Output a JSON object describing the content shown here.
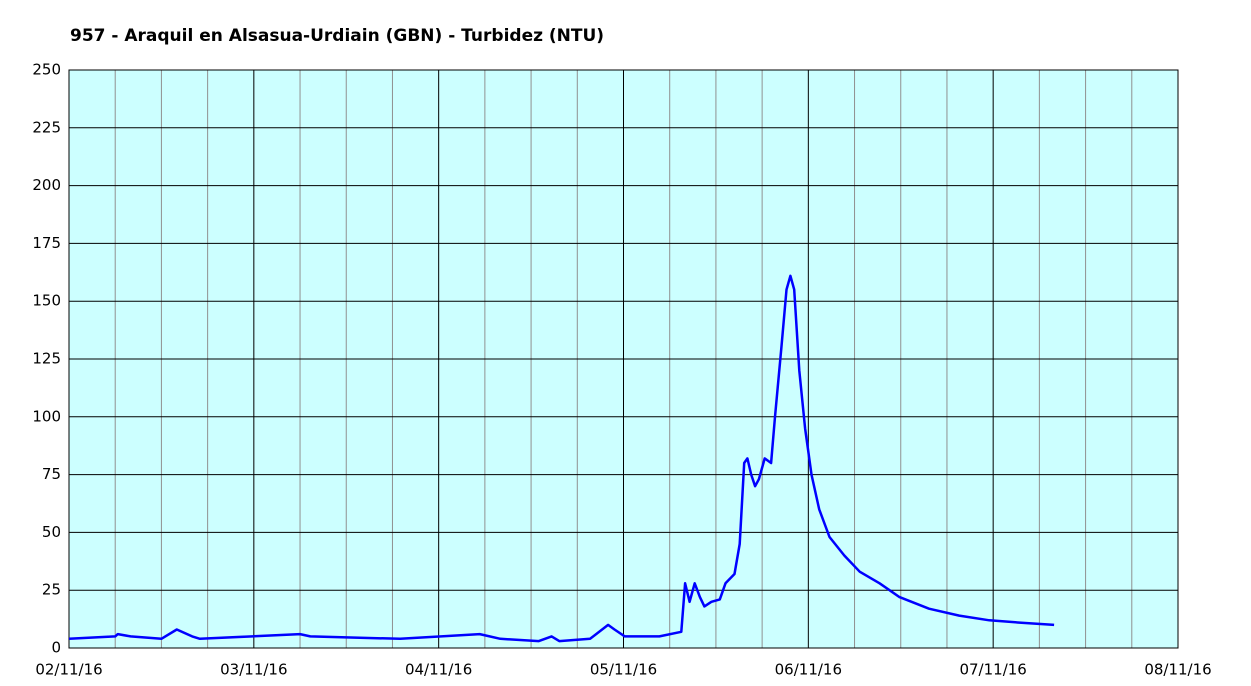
{
  "chart_data": {
    "type": "line",
    "title": "957 - Araquil en Alsasua-Urdiain (GBN) - Turbidez (NTU)",
    "x": [
      "02/11/16 00:00",
      "02/11/16 06:00",
      "02/11/16 06:20",
      "02/11/16 08:00",
      "02/11/16 12:00",
      "02/11/16 14:00",
      "02/11/16 16:00",
      "02/11/16 17:00",
      "03/11/16 06:00",
      "03/11/16 07:20",
      "03/11/16 19:00",
      "04/11/16 05:20",
      "04/11/16 08:00",
      "04/11/16 13:00",
      "04/11/16 14:40",
      "04/11/16 15:40",
      "04/11/16 19:40",
      "04/11/16 22:00",
      "04/11/16 22:50",
      "05/11/16 00:10",
      "05/11/16 04:40",
      "05/11/16 07:30",
      "05/11/16 08:00",
      "05/11/16 08:35",
      "05/11/16 09:15",
      "05/11/16 09:55",
      "05/11/16 10:30",
      "05/11/16 11:25",
      "05/11/16 12:30",
      "05/11/16 13:15",
      "05/11/16 14:25",
      "05/11/16 15:05",
      "05/11/16 15:40",
      "05/11/16 16:05",
      "05/11/16 16:35",
      "05/11/16 17:05",
      "05/11/16 17:35",
      "05/11/16 18:20",
      "05/11/16 19:10",
      "05/11/16 19:40",
      "05/11/16 20:30",
      "05/11/16 21:10",
      "05/11/16 21:40",
      "05/11/16 22:10",
      "05/11/16 22:50",
      "05/11/16 23:35",
      "06/11/16 00:25",
      "06/11/16 01:25",
      "06/11/16 02:45",
      "06/11/16 04:40",
      "06/11/16 06:40",
      "06/11/16 09:15",
      "06/11/16 11:50",
      "06/11/16 15:40",
      "06/11/16 19:35",
      "06/11/16 23:30",
      "07/11/16 03:25",
      "07/11/16 07:55"
    ],
    "series": [
      {
        "name": "Turbidez (NTU)",
        "color": "#0000ff",
        "values": [
          4,
          5,
          6,
          5,
          4,
          8,
          5,
          4,
          6,
          5,
          4,
          6,
          4,
          3,
          5,
          3,
          4,
          10,
          8,
          5,
          5,
          7,
          28,
          20,
          28,
          22,
          18,
          20,
          21,
          28,
          32,
          45,
          80,
          82,
          75,
          70,
          73,
          82,
          80,
          100,
          130,
          155,
          161,
          155,
          120,
          95,
          75,
          60,
          48,
          40,
          33,
          28,
          22,
          17,
          14,
          12,
          11,
          10
        ]
      }
    ],
    "xlim": [
      "02/11/16 00:00",
      "08/11/16 00:00"
    ],
    "xticks": [
      {
        "value": "02/11/16 00:00",
        "label": "02/11/16"
      },
      {
        "value": "03/11/16 00:00",
        "label": "03/11/16"
      },
      {
        "value": "04/11/16 00:00",
        "label": "04/11/16"
      },
      {
        "value": "05/11/16 00:00",
        "label": "05/11/16"
      },
      {
        "value": "06/11/16 00:00",
        "label": "06/11/16"
      },
      {
        "value": "07/11/16 00:00",
        "label": "07/11/16"
      },
      {
        "value": "08/11/16 00:00",
        "label": "08/11/16"
      }
    ],
    "x_minor_ticks": [
      "02/11/16 06:00",
      "02/11/16 12:00",
      "02/11/16 18:00",
      "03/11/16 06:00",
      "03/11/16 12:00",
      "03/11/16 18:00",
      "04/11/16 06:00",
      "04/11/16 12:00",
      "04/11/16 18:00",
      "05/11/16 06:00",
      "05/11/16 12:00",
      "05/11/16 18:00",
      "06/11/16 06:00",
      "06/11/16 12:00",
      "06/11/16 18:00",
      "07/11/16 06:00",
      "07/11/16 12:00",
      "07/11/16 18:00"
    ],
    "ylim": [
      0,
      250
    ],
    "yticks": [
      0,
      25,
      50,
      75,
      100,
      125,
      150,
      175,
      200,
      225,
      250
    ],
    "grid": true,
    "background": "#ccffff"
  }
}
